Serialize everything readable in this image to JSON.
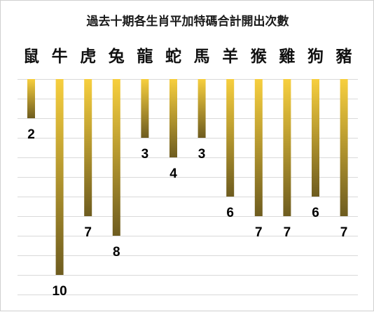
{
  "chart_data": {
    "type": "bar",
    "title": "過去十期各生肖平加特碼合計開出次數",
    "categories": [
      "鼠",
      "牛",
      "虎",
      "兔",
      "龍",
      "蛇",
      "馬",
      "羊",
      "猴",
      "雞",
      "狗",
      "豬"
    ],
    "values": [
      2,
      10,
      7,
      8,
      3,
      4,
      3,
      6,
      7,
      7,
      6,
      7
    ],
    "orientation": "downward",
    "axis_range": [
      0,
      11
    ],
    "grid": true,
    "legend": "none",
    "colors": {
      "bar_top": "#f7cf3e",
      "bar_bottom": "#6e5c1f",
      "grid": "#d9d9d9"
    }
  }
}
